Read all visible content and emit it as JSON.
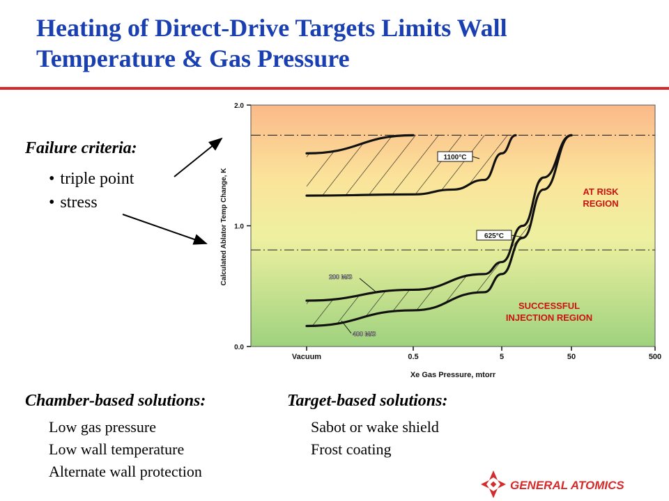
{
  "slide": {
    "title": "Heating of Direct-Drive Targets  Limits Wall Temperature & Gas Pressure",
    "failure_heading": "Failure criteria:",
    "failure_items": [
      "triple point",
      "stress"
    ],
    "chamber_heading": "Chamber-based solutions:",
    "chamber_items": [
      "Low gas pressure",
      "Low wall temperature",
      "Alternate wall protection"
    ],
    "target_heading": "Target-based solutions:",
    "target_items": [
      "Sabot or wake shield",
      "Frost coating"
    ],
    "logo_text": "GENERAL ATOMICS",
    "colors": {
      "title": "#1a3fb0",
      "rule": "#d42a2a",
      "logo": "#d42a2a",
      "region_label": "#cc1111"
    }
  },
  "chart_data": {
    "type": "line",
    "xlabel": "Xe Gas Pressure, mtorr",
    "ylabel": "Calculated Ablator Temp Change, K",
    "ylim": [
      0,
      2
    ],
    "yticks": [
      0,
      1,
      2
    ],
    "ytick_labels": [
      "0.0",
      "1.0",
      "2.0"
    ],
    "x_positions": [
      "Vacuum",
      "0.5",
      "5",
      "50",
      "500"
    ],
    "x_scale": "categorical (log-like)",
    "thresholds": [
      1.75,
      0.8
    ],
    "regions": [
      "AT RISK REGION",
      "SUCCESSFUL INJECTION REGION"
    ],
    "region_lines": [
      [
        "AT RISK",
        "REGION"
      ],
      [
        "SUCCESSFUL",
        "INJECTION REGION"
      ]
    ],
    "annotations": [
      "1100°C",
      "625°C",
      "200 M/S",
      "400 M/S"
    ],
    "series": [
      {
        "name": "1100°C, 200 M/S",
        "group": "1100",
        "points": [
          [
            "Vacuum",
            1.6
          ],
          [
            "0.5",
            1.75
          ]
        ]
      },
      {
        "name": "1100°C, 400 M/S",
        "group": "1100",
        "points": [
          [
            "Vacuum",
            1.25
          ],
          [
            "0.5",
            1.26
          ],
          [
            "1.5",
            1.3
          ],
          [
            "3",
            1.38
          ],
          [
            "5",
            1.6
          ],
          [
            "6",
            1.75
          ]
        ]
      },
      {
        "name": "625°C, 200 M/S",
        "group": "625",
        "points": [
          [
            "Vacuum",
            0.38
          ],
          [
            "0.5",
            0.47
          ],
          [
            "3",
            0.6
          ],
          [
            "5",
            0.7
          ],
          [
            "10",
            1.0
          ],
          [
            "20",
            1.4
          ],
          [
            "50",
            1.75
          ]
        ]
      },
      {
        "name": "625°C, 400 M/S",
        "group": "625",
        "points": [
          [
            "Vacuum",
            0.17
          ],
          [
            "0.5",
            0.3
          ],
          [
            "3",
            0.45
          ],
          [
            "5",
            0.6
          ],
          [
            "10",
            0.9
          ],
          [
            "20",
            1.3
          ],
          [
            "50",
            1.75
          ]
        ]
      }
    ]
  }
}
